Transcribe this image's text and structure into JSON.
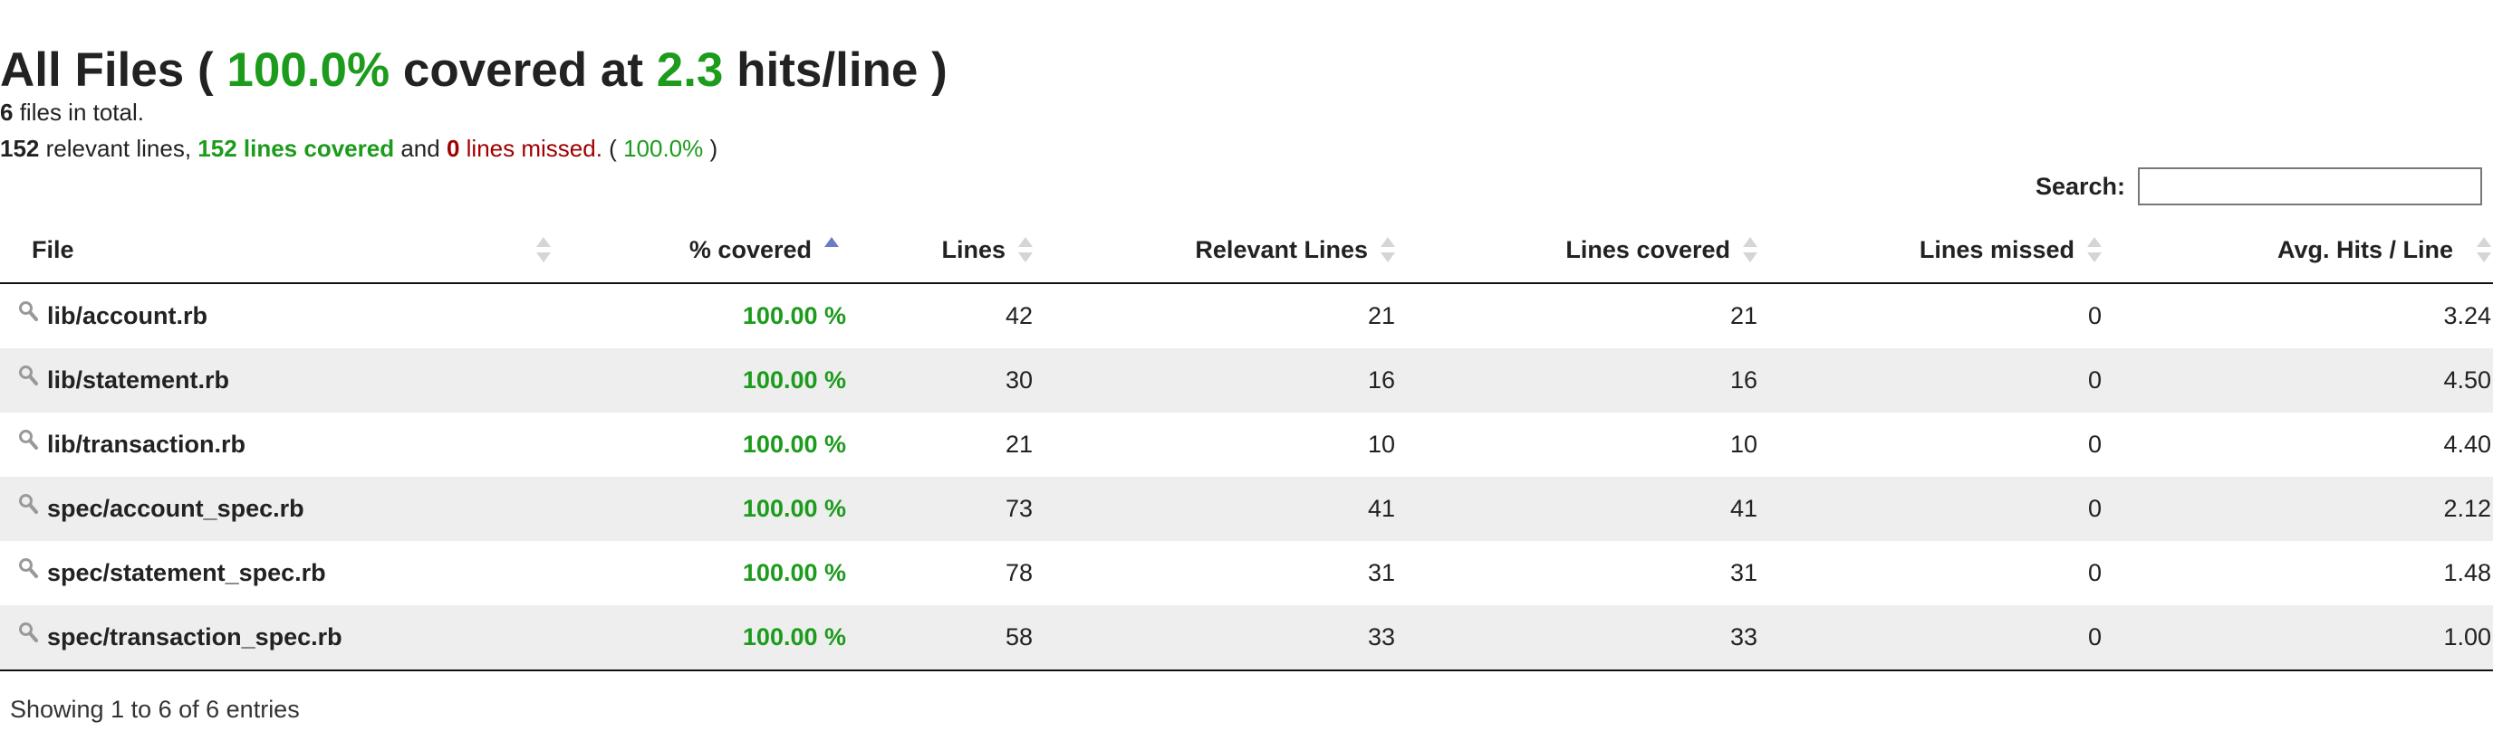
{
  "heading": {
    "prefix": "All Files (",
    "percent": "100.0%",
    "middle": "covered at",
    "hits": "2.3",
    "suffix": "hits/line )"
  },
  "summary": {
    "files_count": "6",
    "files_text": "files in total.",
    "relevant_count": "152",
    "relevant_text": "relevant lines,",
    "covered_text": "152 lines covered",
    "and_text": "and",
    "missed_count": "0",
    "missed_text": "lines missed.",
    "paren_open": "(",
    "percent": "100.0%",
    "paren_close": ")"
  },
  "search": {
    "label": "Search:",
    "value": "",
    "placeholder": ""
  },
  "colors": {
    "green": "#1c9b1c",
    "red": "#a00000",
    "row_stripe": "#eeeeee",
    "sort_active": "#6b7bc6"
  },
  "table": {
    "columns": [
      {
        "label": "File",
        "sort": "none"
      },
      {
        "label": "% covered",
        "sort": "ascending"
      },
      {
        "label": "Lines",
        "sort": "none"
      },
      {
        "label": "Relevant Lines",
        "sort": "none"
      },
      {
        "label": "Lines covered",
        "sort": "none"
      },
      {
        "label": "Lines missed",
        "sort": "none"
      },
      {
        "label": "Avg. Hits / Line",
        "sort": "none"
      }
    ],
    "row_icon": "magnifier-icon",
    "rows": [
      {
        "file": "lib/account.rb",
        "covered": "100.00 %",
        "lines": "42",
        "relevant": "21",
        "lines_covered": "21",
        "missed": "0",
        "avg_hits": "3.24"
      },
      {
        "file": "lib/statement.rb",
        "covered": "100.00 %",
        "lines": "30",
        "relevant": "16",
        "lines_covered": "16",
        "missed": "0",
        "avg_hits": "4.50"
      },
      {
        "file": "lib/transaction.rb",
        "covered": "100.00 %",
        "lines": "21",
        "relevant": "10",
        "lines_covered": "10",
        "missed": "0",
        "avg_hits": "4.40"
      },
      {
        "file": "spec/account_spec.rb",
        "covered": "100.00 %",
        "lines": "73",
        "relevant": "41",
        "lines_covered": "41",
        "missed": "0",
        "avg_hits": "2.12"
      },
      {
        "file": "spec/statement_spec.rb",
        "covered": "100.00 %",
        "lines": "78",
        "relevant": "31",
        "lines_covered": "31",
        "missed": "0",
        "avg_hits": "1.48"
      },
      {
        "file": "spec/transaction_spec.rb",
        "covered": "100.00 %",
        "lines": "58",
        "relevant": "33",
        "lines_covered": "33",
        "missed": "0",
        "avg_hits": "1.00"
      }
    ]
  },
  "footer": {
    "info": "Showing 1 to 6 of 6 entries"
  }
}
